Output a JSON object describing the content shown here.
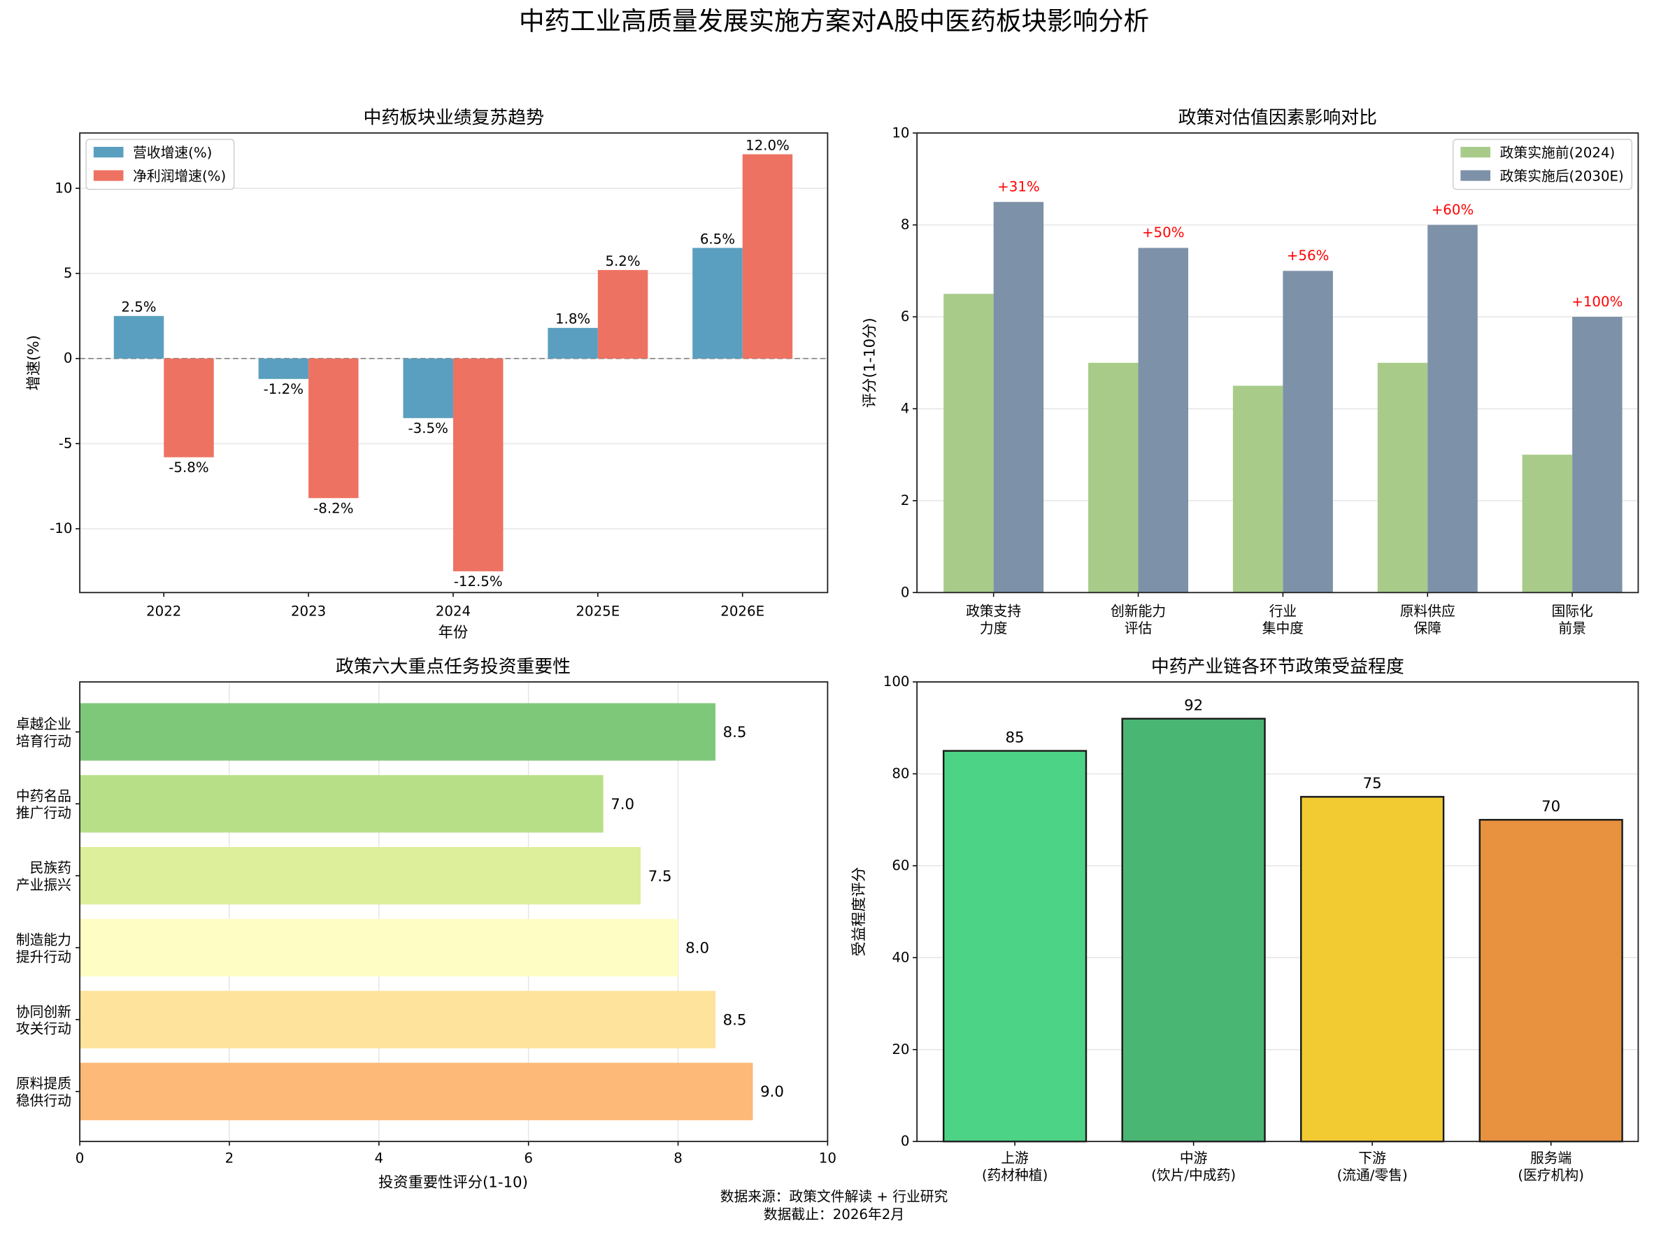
{
  "title": "中药工业高质量发展实施方案对A股中医药板块影响分析",
  "footer": [
    "数据来源：政策文件解读 + 行业研究",
    "数据截止：2026年2月"
  ],
  "chart_data": [
    {
      "type": "bar",
      "title": "中药板块业绩复苏趋势",
      "xlabel": "年份",
      "ylabel": "增速(%)",
      "categories": [
        "2022",
        "2023",
        "2024",
        "2025E",
        "2026E"
      ],
      "series": [
        {
          "name": "营收增速(%)",
          "values": [
            2.5,
            -1.2,
            -3.5,
            1.8,
            6.5
          ],
          "color": "#5a9fbf"
        },
        {
          "name": "净利润增速(%)",
          "values": [
            -5.8,
            -8.2,
            -12.5,
            5.2,
            12.0
          ],
          "color": "#ee7262"
        }
      ],
      "data_labels": [
        [
          "2.5%",
          "-1.2%",
          "-3.5%",
          "1.8%",
          "6.5%"
        ],
        [
          "-5.8%",
          "-8.2%",
          "-12.5%",
          "5.2%",
          "12.0%"
        ]
      ],
      "yticks": [
        "-10",
        "-5",
        "0",
        "5",
        "10"
      ],
      "ylim": [
        -13.75,
        13.25
      ],
      "grid": true,
      "legend": "top-left"
    },
    {
      "type": "bar",
      "title": "政策对估值因素影响对比",
      "ylabel": "评分(1-10分)",
      "categories": [
        "政策支持\n力度",
        "创新能力\n评估",
        "行业\n集中度",
        "原料供应\n保障",
        "国际化\n前景"
      ],
      "series": [
        {
          "name": "政策实施前(2024)",
          "values": [
            6.5,
            5.0,
            4.5,
            5.0,
            3.0
          ],
          "color": "#a8cb8a"
        },
        {
          "name": "政策实施后(2030E)",
          "values": [
            8.5,
            7.5,
            7.0,
            8.0,
            6.0
          ],
          "color": "#7d91a8"
        }
      ],
      "annotations": [
        "+31%",
        "+50%",
        "+56%",
        "+60%",
        "+100%"
      ],
      "annotation_color": "#ff0000",
      "yticks": [
        "0",
        "2",
        "4",
        "6",
        "8",
        "10"
      ],
      "ylim": [
        0,
        10
      ],
      "grid": true,
      "legend": "top-left"
    },
    {
      "type": "barh",
      "title": "政策六大重点任务投资重要性",
      "xlabel": "投资重要性评分(1-10)",
      "categories": [
        "卓越企业\n培育行动",
        "中药名品\n推广行动",
        "民族药\n产业振兴",
        "制造能力\n提升行动",
        "协同创新\n攻关行动",
        "原料提质\n稳供行动"
      ],
      "values": [
        8.5,
        7.0,
        7.5,
        8.0,
        8.5,
        9.0
      ],
      "data_labels": [
        "8.5",
        "7.0",
        "7.5",
        "8.0",
        "8.5",
        "9.0"
      ],
      "colors": [
        "#7ec87a",
        "#b6df88",
        "#ddef9a",
        "#fefdc4",
        "#fee39c",
        "#fdb977"
      ],
      "xticks": [
        "0",
        "2",
        "4",
        "6",
        "8",
        "10"
      ],
      "xlim": [
        0,
        10
      ],
      "grid": true
    },
    {
      "type": "bar",
      "title": "中药产业链各环节政策受益程度",
      "ylabel": "受益程度评分",
      "categories": [
        "上游\n(药材种植)",
        "中游\n(饮片/中成药)",
        "下游\n(流通/零售)",
        "服务端\n(医疗机构)"
      ],
      "values": [
        85,
        92,
        75,
        70
      ],
      "data_labels": [
        "85",
        "92",
        "75",
        "70"
      ],
      "colors": [
        "#4cd385",
        "#49b673",
        "#f2cb33",
        "#e8923f"
      ],
      "yticks": [
        "0",
        "20",
        "40",
        "60",
        "80",
        "100"
      ],
      "ylim": [
        0,
        100
      ],
      "grid": true
    }
  ]
}
